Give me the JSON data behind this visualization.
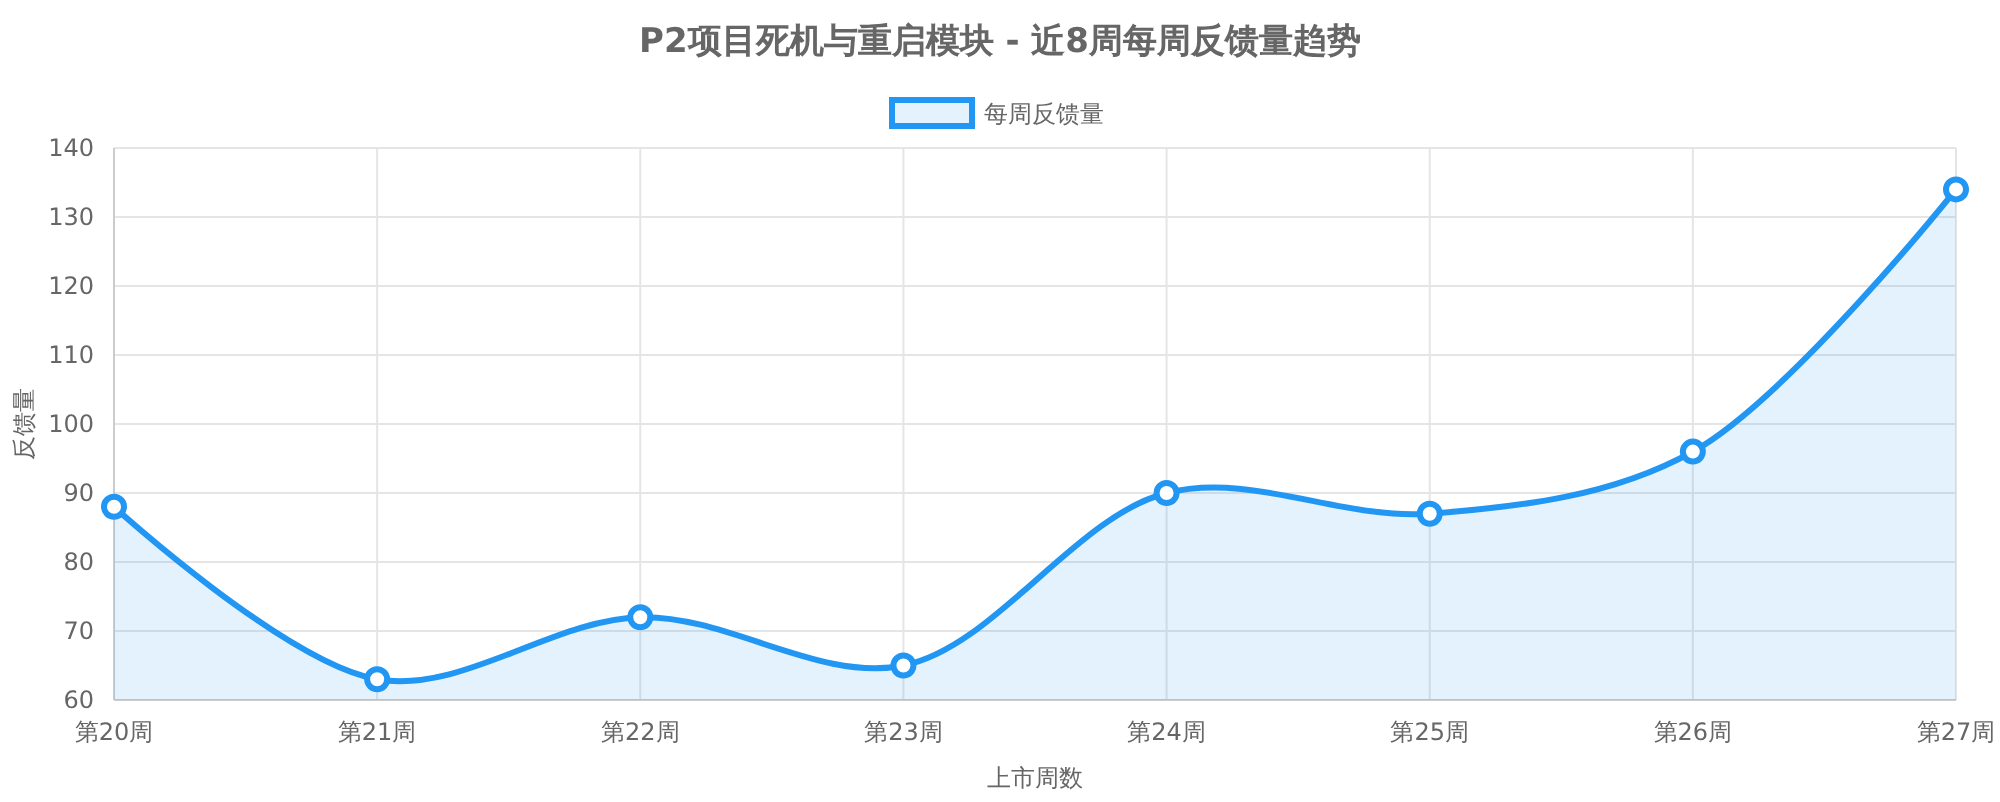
{
  "chart_data": {
    "type": "area",
    "title": "P2项目死机与重启模块 - 近8周每周反馈量趋势",
    "xlabel": "上市周数",
    "ylabel": "反馈量",
    "categories": [
      "第20周",
      "第21周",
      "第22周",
      "第23周",
      "第24周",
      "第25周",
      "第26周",
      "第27周"
    ],
    "series": [
      {
        "name": "每周反馈量",
        "color": "#2196f3",
        "values": [
          88,
          63,
          72,
          65,
          90,
          87,
          96,
          134
        ]
      }
    ],
    "ylim": [
      60,
      140
    ],
    "yticks": [
      60,
      70,
      80,
      90,
      100,
      110,
      120,
      130,
      140
    ],
    "grid": true,
    "legend": "top",
    "marker": "circle",
    "line_style": "solid"
  }
}
